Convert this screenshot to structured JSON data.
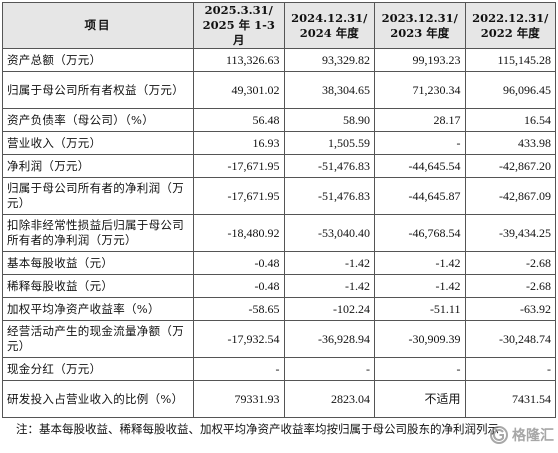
{
  "header": {
    "label": "项目",
    "columns": [
      {
        "line1": "2025.3.31/",
        "line2": "2025 年 1-3 月"
      },
      {
        "line1": "2024.12.31/",
        "line2": "2024 年度"
      },
      {
        "line1": "2023.12.31/",
        "line2": "2023 年度"
      },
      {
        "line1": "2022.12.31/",
        "line2": "2022 年度"
      }
    ]
  },
  "rows": [
    {
      "label": "资产总额（万元）",
      "values": [
        "113,326.63",
        "93,329.82",
        "99,193.23",
        "115,145.28"
      ]
    },
    {
      "label": "归属于母公司所有者权益（万元）",
      "values": [
        "49,301.02",
        "38,304.65",
        "71,230.34",
        "96,096.45"
      ]
    },
    {
      "label": "资产负债率（母公司）（%）",
      "values": [
        "56.48",
        "58.90",
        "28.17",
        "16.54"
      ]
    },
    {
      "label": "营业收入（万元）",
      "values": [
        "16.93",
        "1,505.59",
        "-",
        "433.98"
      ]
    },
    {
      "label": "净利润（万元）",
      "values": [
        "-17,671.95",
        "-51,476.83",
        "-44,645.54",
        "-42,867.20"
      ]
    },
    {
      "label": "归属于母公司所有者的净利润（万元）",
      "values": [
        "-17,671.95",
        "-51,476.83",
        "-44,645.87",
        "-42,867.09"
      ]
    },
    {
      "label": "扣除非经常性损益后归属于母公司所有者的净利润（万元）",
      "values": [
        "-18,480.92",
        "-53,040.40",
        "-46,768.54",
        "-39,434.25"
      ]
    },
    {
      "label": "基本每股收益（元）",
      "values": [
        "-0.48",
        "-1.42",
        "-1.42",
        "-2.68"
      ]
    },
    {
      "label": "稀释每股收益（元）",
      "values": [
        "-0.48",
        "-1.42",
        "-1.42",
        "-2.68"
      ]
    },
    {
      "label": "加权平均净资产收益率（%）",
      "values": [
        "-58.65",
        "-102.24",
        "-51.11",
        "-63.92"
      ]
    },
    {
      "label": "经营活动产生的现金流量净额（万元）",
      "values": [
        "-17,932.54",
        "-36,928.94",
        "-30,909.39",
        "-30,248.74"
      ]
    },
    {
      "label": "现金分红（万元）",
      "values": [
        "-",
        "-",
        "-",
        "-"
      ]
    },
    {
      "label": "研发投入占营业收入的比例（%）",
      "values": [
        "79331.93",
        "2823.04",
        "不适用",
        "7431.54"
      ]
    }
  ],
  "footnote": "注：基本每股收益、稀释每股收益、加权平均净资产收益率均按归属于母公司股东的净利润列示",
  "watermark": {
    "text": "格隆汇",
    "icon": "glh-logo-icon"
  },
  "colors": {
    "header_bg": "#e6e6e6",
    "border": "#555555",
    "text": "#111111",
    "watermark": "#8a8a8a"
  }
}
